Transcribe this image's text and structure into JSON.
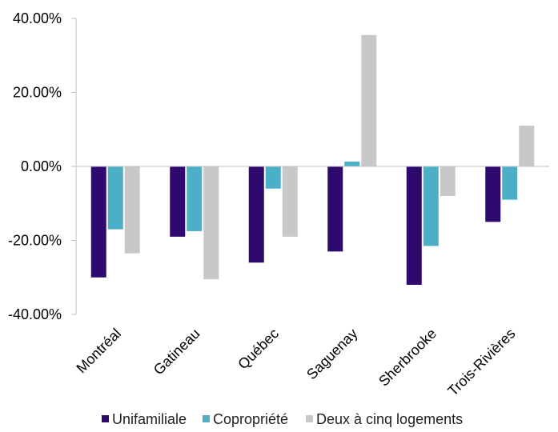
{
  "chart_data": {
    "type": "bar",
    "categories": [
      "Montréal",
      "Gatineau",
      "Québec",
      "Saguenay",
      "Sherbrooke",
      "Trois-Rivières"
    ],
    "series": [
      {
        "name": "Unifamiliale",
        "color": "#2e0a6e",
        "values": [
          -0.3,
          -0.19,
          -0.26,
          -0.23,
          -0.32,
          -0.15
        ]
      },
      {
        "name": "Copropriété",
        "color": "#4bafc8",
        "values": [
          -0.17,
          -0.175,
          -0.06,
          0.013,
          -0.215,
          -0.09
        ]
      },
      {
        "name": "Deux à cinq logements",
        "color": "#c8c8c8",
        "values": [
          -0.235,
          -0.305,
          -0.19,
          0.355,
          -0.08,
          0.11
        ]
      }
    ],
    "yticks": [
      "40.00%",
      "20.00%",
      "0.00%",
      "-20.00%",
      "-40.00%"
    ],
    "ylim": [
      -0.4,
      0.4
    ],
    "grid": false,
    "legend_position": "bottom",
    "title": "",
    "xlabel": "",
    "ylabel": ""
  }
}
